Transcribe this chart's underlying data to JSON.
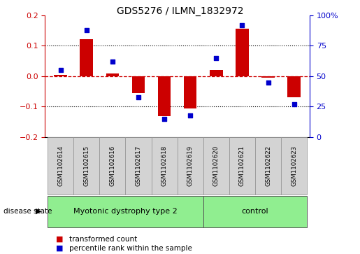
{
  "title": "GDS5276 / ILMN_1832972",
  "samples": [
    "GSM1102614",
    "GSM1102615",
    "GSM1102616",
    "GSM1102617",
    "GSM1102618",
    "GSM1102619",
    "GSM1102620",
    "GSM1102621",
    "GSM1102622",
    "GSM1102623"
  ],
  "transformed_count": [
    0.005,
    0.122,
    0.01,
    -0.055,
    -0.13,
    -0.105,
    0.02,
    0.155,
    -0.005,
    -0.07
  ],
  "percentile_rank": [
    55,
    88,
    62,
    33,
    15,
    18,
    65,
    92,
    45,
    27
  ],
  "groups": [
    {
      "label": "Myotonic dystrophy type 2",
      "start": 0,
      "end": 6,
      "color": "#90ee90"
    },
    {
      "label": "control",
      "start": 6,
      "end": 10,
      "color": "#90ee90"
    }
  ],
  "ylim_left": [
    -0.2,
    0.2
  ],
  "ylim_right": [
    0,
    100
  ],
  "yticks_left": [
    -0.2,
    -0.1,
    0.0,
    0.1,
    0.2
  ],
  "yticks_right": [
    0,
    25,
    50,
    75,
    100
  ],
  "bar_color": "#cc0000",
  "dot_color": "#0000cc",
  "zero_line_color": "#cc0000",
  "grid_color": "#000000",
  "plot_bg": "#ffffff",
  "label_bg": "#d3d3d3",
  "group_border_color": "#555555",
  "disease_state_label": "disease state",
  "legend_bar": "transformed count",
  "legend_dot": "percentile rank within the sample",
  "bar_width": 0.5
}
